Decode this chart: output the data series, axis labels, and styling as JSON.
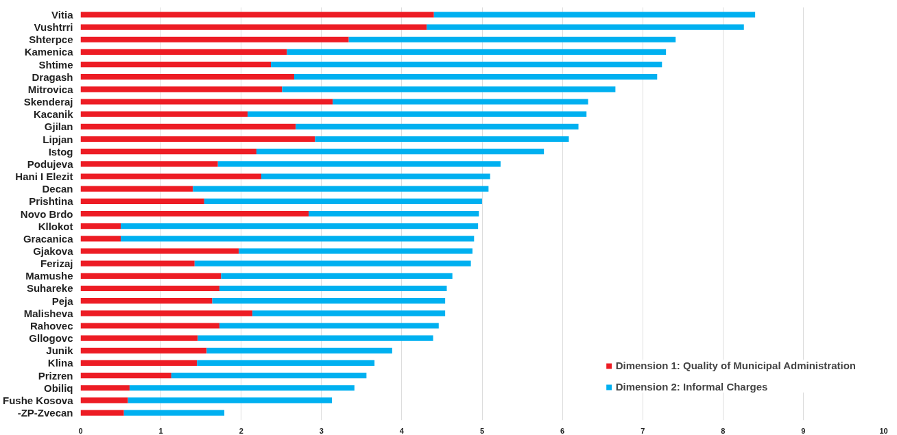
{
  "chart_data": {
    "type": "bar",
    "orientation": "horizontal",
    "stacked": true,
    "categories": [
      "Vitia",
      "Vushtrri",
      "Shterpce",
      "Kamenica",
      "Shtime",
      "Dragash",
      "Mitrovica",
      "Skenderaj",
      "Kacanik",
      "Gjilan",
      "Lipjan",
      "Istog",
      "Podujeva",
      "Hani I Elezit",
      "Decan",
      "Prishtina",
      "Novo Brdo",
      "Kllokot",
      "Gracanica",
      "Gjakova",
      "Ferizaj",
      "Mamushe",
      "Suhareke",
      "Peja",
      "Malisheva",
      "Rahovec",
      "Gllogovc",
      "Junik",
      "Klina",
      "Prizren",
      "Obiliq",
      "Fushe Kosova",
      "-ZP-Zvecan"
    ],
    "series": [
      {
        "name": "Dimension 1: Quality of Municipal Administration",
        "color": "#ed1c24",
        "values": [
          4.4,
          4.31,
          3.34,
          2.57,
          2.37,
          2.66,
          2.51,
          3.14,
          2.08,
          2.68,
          2.92,
          2.19,
          1.71,
          2.25,
          1.4,
          1.54,
          2.84,
          0.5,
          0.5,
          1.97,
          1.42,
          1.75,
          1.73,
          1.64,
          2.14,
          1.73,
          1.46,
          1.57,
          1.45,
          1.13,
          0.61,
          0.59,
          0.54
        ]
      },
      {
        "name": "Dimension 2: Informal Charges",
        "color": "#00b0f0",
        "values": [
          4.0,
          3.95,
          4.07,
          4.72,
          4.87,
          4.52,
          4.15,
          3.18,
          4.22,
          3.52,
          3.16,
          3.58,
          3.52,
          2.85,
          3.68,
          3.46,
          2.12,
          4.45,
          4.4,
          2.91,
          3.44,
          2.88,
          2.83,
          2.9,
          2.4,
          2.73,
          2.93,
          2.31,
          2.21,
          2.43,
          2.8,
          2.54,
          1.25
        ]
      }
    ],
    "xlim": [
      0,
      10
    ],
    "xticks": [
      0,
      1,
      2,
      3,
      4,
      5,
      6,
      7,
      8,
      9,
      10
    ],
    "grid": "x",
    "legend": "bottom right"
  }
}
